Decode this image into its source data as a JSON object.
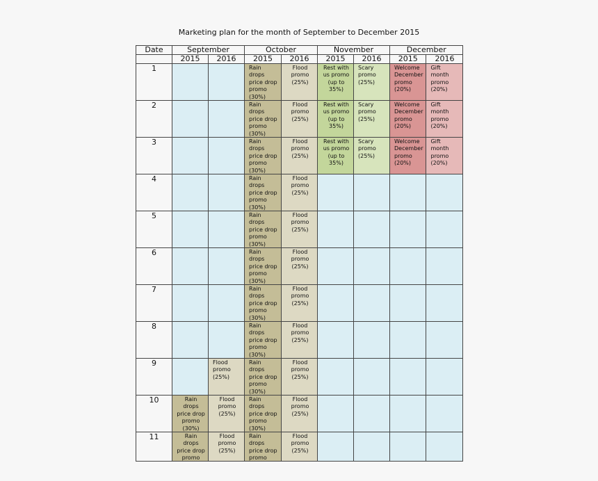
{
  "title": "Marketing plan for the month of September to December 2015",
  "header": {
    "date_label": "Date",
    "months": [
      "September",
      "October",
      "November",
      "December"
    ],
    "years": [
      "2015",
      "2016",
      "2015",
      "2016",
      "2015",
      "2016",
      "2015",
      "2016"
    ]
  },
  "colors": {
    "empty": "#dbeef4",
    "rain": "#c4bd97",
    "flood": "#ddd9c3",
    "rest": "#c3d69b",
    "scary": "#d7e4bc",
    "welcome": "#d99594",
    "gift": "#e6b9b8"
  },
  "promos": {
    "empty": "",
    "rain": "Rain drops price drop promo (30%)",
    "flood": "Flood promo (25%)",
    "rest": "Rest with us promo (up to 35%)",
    "scary": "Scary promo (25%)",
    "welcome": "Welcome December promo (20%)",
    "gift": "Gift month promo (20%)"
  },
  "rows": [
    {
      "date": "1",
      "cells": [
        "empty",
        "empty",
        "rain",
        "flood",
        "rest",
        "scary",
        "welcome",
        "gift"
      ]
    },
    {
      "date": "2",
      "cells": [
        "empty",
        "empty",
        "rain",
        "flood",
        "rest",
        "scary",
        "welcome",
        "gift"
      ]
    },
    {
      "date": "3",
      "cells": [
        "empty",
        "empty",
        "rain",
        "flood",
        "rest",
        "scary",
        "welcome",
        "gift"
      ]
    },
    {
      "date": "4",
      "cells": [
        "empty",
        "empty",
        "rain",
        "flood",
        "empty",
        "empty",
        "empty",
        "empty"
      ]
    },
    {
      "date": "5",
      "cells": [
        "empty",
        "empty",
        "rain",
        "flood",
        "empty",
        "empty",
        "empty",
        "empty"
      ]
    },
    {
      "date": "6",
      "cells": [
        "empty",
        "empty",
        "rain",
        "flood",
        "empty",
        "empty",
        "empty",
        "empty"
      ]
    },
    {
      "date": "7",
      "cells": [
        "empty",
        "empty",
        "rain",
        "flood",
        "empty",
        "empty",
        "empty",
        "empty"
      ]
    },
    {
      "date": "8",
      "cells": [
        "empty",
        "empty",
        "rain",
        "flood",
        "empty",
        "empty",
        "empty",
        "empty"
      ]
    },
    {
      "date": "9",
      "cells": [
        "empty",
        "flood",
        "rain",
        "flood",
        "empty",
        "empty",
        "empty",
        "empty"
      ]
    },
    {
      "date": "10",
      "cells": [
        "rain",
        "flood",
        "rain",
        "flood",
        "empty",
        "empty",
        "empty",
        "empty"
      ]
    },
    {
      "date": "11",
      "cells": [
        "rain",
        "flood",
        "rain",
        "flood",
        "empty",
        "empty",
        "empty",
        "empty"
      ]
    }
  ]
}
